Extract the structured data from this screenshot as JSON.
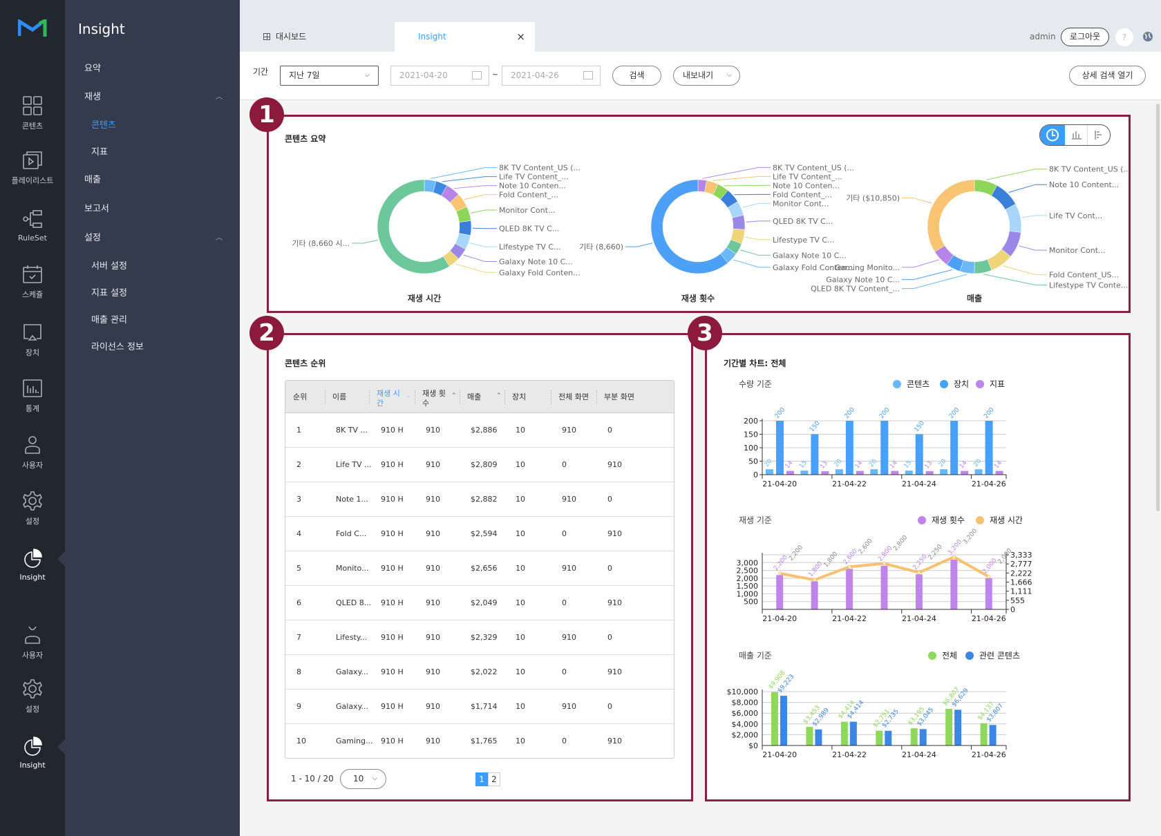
{
  "rail": {
    "items": [
      {
        "label": "콘텐츠",
        "icon": "grid-icon"
      },
      {
        "label": "플레이리스트",
        "icon": "playlist-icon"
      },
      {
        "label": "RuleSet",
        "icon": "ruleset-icon"
      },
      {
        "label": "스케쥴",
        "icon": "calendar-icon"
      },
      {
        "label": "장치",
        "icon": "display-icon"
      },
      {
        "label": "통계",
        "icon": "stats-icon"
      },
      {
        "label": "사용자",
        "icon": "user-icon"
      },
      {
        "label": "설정",
        "icon": "gear-icon"
      },
      {
        "label": "Insight",
        "icon": "pie-icon",
        "active": true
      },
      {
        "label": "사용자",
        "icon": "user-alt-icon"
      },
      {
        "label": "설정",
        "icon": "gear-icon"
      },
      {
        "label": "Insight",
        "icon": "pie-icon",
        "active": true
      }
    ]
  },
  "sidebar": {
    "title": "Insight",
    "items": [
      {
        "label": "요약"
      },
      {
        "label": "재생",
        "expanded": true
      },
      {
        "label": "콘텐츠",
        "sub": true,
        "active": true
      },
      {
        "label": "지표",
        "sub": true
      },
      {
        "label": "매출"
      },
      {
        "label": "보고서"
      },
      {
        "label": "설정",
        "expanded": true
      },
      {
        "label": "서버 설정",
        "sub": true
      },
      {
        "label": "지표 설정",
        "sub": true
      },
      {
        "label": "매출 관리",
        "sub": true
      },
      {
        "label": "라이선스 정보",
        "sub": true
      }
    ]
  },
  "header": {
    "tabs": [
      {
        "label": "대시보드"
      },
      {
        "label": "Insight",
        "active": true,
        "close": "×"
      }
    ],
    "user": "admin",
    "logout": "로그아웃",
    "help": "?"
  },
  "filter": {
    "period_label": "기간",
    "period_value": "지난 7일",
    "date_from": "2021-04-20",
    "date_sep": "~",
    "date_to": "2021-04-26",
    "search": "검색",
    "export": "내보내기",
    "advanced": "상세 검색 열기"
  },
  "panels": {
    "badges": [
      "1",
      "2",
      "3"
    ],
    "summary_title": "콘텐츠 요약",
    "ranking_title": "콘텐츠 순위",
    "period_title": "기간별 차트: 전체"
  },
  "colors": {
    "accent": "#3b9dff",
    "panel_border": "#8f1d40",
    "badge": "#8b1a3c"
  },
  "table": {
    "columns": [
      "순위",
      "이름",
      "재생 시\n간",
      "재생 횟\n수",
      "매출",
      "장치",
      "전체 화면",
      "부분 화면"
    ],
    "sorted_column": "재생 시간",
    "rows": [
      [
        "1",
        "8K TV ...",
        "910 H",
        "910",
        "$2,886",
        "10",
        "910",
        "0"
      ],
      [
        "2",
        "Life TV ...",
        "910 H",
        "910",
        "$2,809",
        "10",
        "0",
        "910"
      ],
      [
        "3",
        "Note 1...",
        "910 H",
        "910",
        "$2,882",
        "10",
        "910",
        "0"
      ],
      [
        "4",
        "Fold C...",
        "910 H",
        "910",
        "$2,594",
        "10",
        "0",
        "910"
      ],
      [
        "5",
        "Monito...",
        "910 H",
        "910",
        "$2,656",
        "10",
        "910",
        "0"
      ],
      [
        "6",
        "QLED 8...",
        "910 H",
        "910",
        "$2,049",
        "10",
        "0",
        "910"
      ],
      [
        "7",
        "Lifesty...",
        "910 H",
        "910",
        "$2,329",
        "10",
        "910",
        "0"
      ],
      [
        "8",
        "Galaxy...",
        "910 H",
        "910",
        "$2,022",
        "10",
        "0",
        "910"
      ],
      [
        "9",
        "Galaxy...",
        "910 H",
        "910",
        "$1,714",
        "10",
        "910",
        "0"
      ],
      [
        "10",
        "Gaming...",
        "910 H",
        "910",
        "$1,765",
        "10",
        "0",
        "910"
      ]
    ],
    "range": "1 - 10 / 20",
    "page_size": "10",
    "pages": [
      "1",
      "2"
    ],
    "current_page": "1"
  },
  "chart_data": [
    {
      "type": "pie",
      "title": "재생 시간",
      "donut": true,
      "labels": [
        "8K TV Content_US (...",
        "Life TV Content_...",
        "Note 10 Conten...",
        "Fold Content_...",
        "Monitor Cont...",
        "QLED 8K TV C...",
        "Lifestype TV C...",
        "Galaxy Note 10 C...",
        "Galaxy Fold Conten...",
        "기타 (8,660 시..."
      ],
      "shares": [
        4,
        4,
        5,
        5,
        5,
        5,
        5,
        4,
        4,
        59
      ],
      "colors": [
        "#6ab8f7",
        "#3d8be0",
        "#b785e8",
        "#f8c472",
        "#8ed65a",
        "#3a7fd9",
        "#a8d6fb",
        "#9b87e8",
        "#efd57a",
        "#6cc79a"
      ]
    },
    {
      "type": "pie",
      "title": "재생 횟수",
      "donut": true,
      "labels": [
        "8K TV Content_US (...",
        "Life TV Content_...",
        "Note 10 Conten...",
        "Fold Content_...",
        "Monitor Cont...",
        "QLED 8K TV C...",
        "Lifestype TV C...",
        "Galaxy Note 10 C...",
        "Galaxy Fold Conten...",
        "기타 (8,660)"
      ],
      "shares": [
        3,
        4,
        4,
        5,
        5,
        5,
        5,
        4,
        4,
        61
      ],
      "colors": [
        "#b785e8",
        "#f8c472",
        "#8ed65a",
        "#3a7fd9",
        "#a8d6fb",
        "#9b87e8",
        "#efd57a",
        "#6cc79a",
        "#6ab8f7",
        "#4ca0f8"
      ]
    },
    {
      "type": "pie",
      "title": "매출",
      "donut": true,
      "labels": [
        "8K TV Content_US (...",
        "Note 10 Content...",
        "Life TV Cont...",
        "Monitor Cont...",
        "Fold Content_US...",
        "Lifestype TV Conte...",
        "QLED 8K TV Content_...",
        "Galaxy Note 10 C...",
        "Gaming Monito...",
        "기타 ($10,850)"
      ],
      "shares": [
        8,
        9,
        10,
        9,
        8,
        6,
        5,
        5,
        6,
        34
      ],
      "colors": [
        "#8ed65a",
        "#3a7fd9",
        "#a8d6fb",
        "#9b87e8",
        "#efd57a",
        "#6cc79a",
        "#6ab8f7",
        "#4ca0f8",
        "#b785e8",
        "#f8c472"
      ]
    },
    {
      "type": "bar",
      "title": "수량 기준",
      "categories": [
        "21-04-20",
        "21-04-21",
        "21-04-22",
        "21-04-23",
        "21-04-24",
        "21-04-25",
        "21-04-26"
      ],
      "tick_labels": [
        "21-04-20",
        "21-04-22",
        "21-04-24",
        "21-04-26"
      ],
      "ylim": [
        0,
        200
      ],
      "yticks": [
        "0",
        "50",
        "100",
        "150",
        "200"
      ],
      "grid": true,
      "legend": "top-right",
      "series": [
        {
          "name": "콘텐츠",
          "color": "#66b8fc",
          "values": [
            20,
            15,
            20,
            20,
            15,
            20,
            20
          ]
        },
        {
          "name": "장치",
          "color": "#47a0fb",
          "values": [
            200,
            150,
            200,
            200,
            150,
            200,
            200
          ]
        },
        {
          "name": "지표",
          "color": "#c085ea",
          "values": [
            14,
            13,
            14,
            14,
            13,
            14,
            14
          ]
        }
      ]
    },
    {
      "type": "bar+line",
      "title": "재생 기준",
      "categories": [
        "21-04-20",
        "21-04-21",
        "21-04-22",
        "21-04-23",
        "21-04-24",
        "21-04-25",
        "21-04-26"
      ],
      "tick_labels": [
        "21-04-20",
        "21-04-22",
        "21-04-24",
        "21-04-26"
      ],
      "ylim": [
        0,
        3500
      ],
      "yticks": [
        "500",
        "1,000",
        "1,500",
        "2,000",
        "2,500",
        "3,000"
      ],
      "y2lim": [
        0,
        3333
      ],
      "y2ticks": [
        "0",
        "555",
        "1,111",
        "1,666",
        "2,222",
        "2,777",
        "3,333"
      ],
      "grid": true,
      "legend": "top-right",
      "series": [
        {
          "name": "재생 횟수",
          "color": "#c085ea",
          "kind": "bar",
          "values": [
            2200,
            1800,
            2600,
            2800,
            2250,
            3200,
            2000
          ],
          "labels": [
            "2,200",
            "1,800",
            "2,600",
            "2,800",
            "2,250",
            "3,200",
            "2,000"
          ]
        },
        {
          "name": "재생 시간",
          "color": "#f9c06f",
          "kind": "line",
          "axis": "right",
          "values": [
            2200,
            1800,
            2600,
            2800,
            2250,
            3200,
            2000
          ],
          "labels": [
            "2,200",
            "1,800",
            "2,600",
            "2,800",
            "2,250",
            "3,200",
            "2,000"
          ]
        }
      ]
    },
    {
      "type": "bar",
      "title": "매출 기준",
      "categories": [
        "21-04-20",
        "21-04-21",
        "21-04-22",
        "21-04-23",
        "21-04-24",
        "21-04-25",
        "21-04-26"
      ],
      "tick_labels": [
        "21-04-20",
        "21-04-22",
        "21-04-24",
        "21-04-26"
      ],
      "ylim": [
        0,
        10000
      ],
      "yticks": [
        "$0",
        "$2,000",
        "$4,000",
        "$6,000",
        "$8,000",
        "$10,000"
      ],
      "grid": true,
      "legend": "top-right",
      "series": [
        {
          "name": "전체",
          "color": "#8fd85c",
          "values": [
            9908,
            3453,
            4414,
            2751,
            3195,
            6807,
            4137
          ],
          "labels": [
            "$9,908",
            "$3,453",
            "$4,414",
            "$2,751",
            "$3,195",
            "$6,807",
            "$4,137"
          ]
        },
        {
          "name": "관련 콘텐츠",
          "color": "#3c86e4",
          "values": [
            9223,
            2989,
            4414,
            2735,
            3045,
            6629,
            3807
          ],
          "labels": [
            "$9,223",
            "$2,989",
            "$4,414",
            "$2,735",
            "$3,045",
            "$6,629",
            "$3,807"
          ]
        }
      ]
    }
  ]
}
